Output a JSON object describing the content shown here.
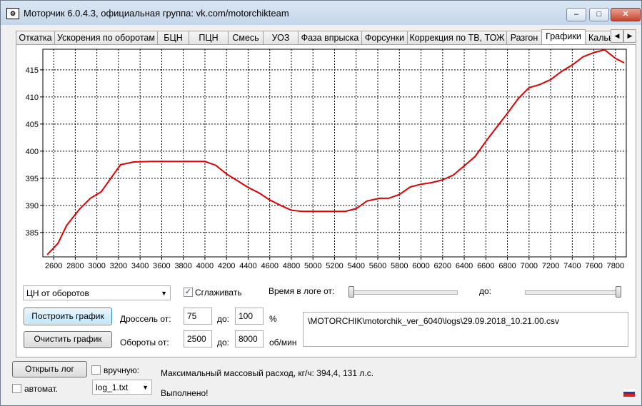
{
  "window": {
    "title": "Моторчик 6.0.4.3, официальная группа: vk.com/motorchikteam",
    "minimize": "–",
    "maximize": "□",
    "close": "✕"
  },
  "tabs": [
    {
      "label": "Откатка"
    },
    {
      "label": "Ускорения по оборотам"
    },
    {
      "label": "БЦН"
    },
    {
      "label": "ПЦН"
    },
    {
      "label": "Смесь"
    },
    {
      "label": "УОЗ"
    },
    {
      "label": "Фаза впрыска"
    },
    {
      "label": "Форсунки"
    },
    {
      "label": "Коррекция по ТВ, ТОЖ"
    },
    {
      "label": "Разгон"
    },
    {
      "label": "Графики"
    },
    {
      "label": "Кальь"
    }
  ],
  "active_tab": "Графики",
  "chart_data": {
    "type": "line",
    "xlim": [
      2500,
      7900
    ],
    "ylim": [
      380.5,
      418.8
    ],
    "xticks": [
      2600,
      2800,
      3000,
      3200,
      3400,
      3600,
      3800,
      4000,
      4200,
      4400,
      4600,
      4800,
      5000,
      5200,
      5400,
      5600,
      5800,
      6000,
      6200,
      6400,
      6600,
      6800,
      7000,
      7200,
      7400,
      7600,
      7800
    ],
    "yticks": [
      385,
      390,
      395,
      400,
      405,
      410,
      415
    ],
    "grid": true,
    "series": [
      {
        "color": "#e00000",
        "x": [
          2540,
          2640,
          2720,
          2840,
          2940,
          3040,
          3140,
          3220,
          3340,
          3500,
          3700,
          3900,
          4000,
          4100,
          4200,
          4320,
          4400,
          4500,
          4600,
          4700,
          4800,
          4900,
          5000,
          5100,
          5200,
          5300,
          5400,
          5500,
          5620,
          5700,
          5800,
          5900,
          6000,
          6100,
          6200,
          6300,
          6400,
          6500,
          6600,
          6700,
          6800,
          6900,
          7000,
          7100,
          7200,
          7300,
          7400,
          7500,
          7600,
          7700,
          7800,
          7880
        ],
        "y": [
          380.9,
          383.0,
          386.3,
          389.3,
          391.3,
          392.5,
          395.3,
          397.5,
          398.0,
          398.1,
          398.1,
          398.1,
          398.1,
          397.4,
          395.8,
          394.3,
          393.3,
          392.3,
          391.0,
          390.0,
          389.1,
          388.9,
          388.9,
          388.9,
          388.9,
          388.9,
          389.4,
          390.8,
          391.3,
          391.3,
          392.0,
          393.4,
          393.9,
          394.2,
          394.7,
          395.6,
          397.3,
          399.0,
          401.8,
          404.4,
          407.0,
          409.7,
          411.7,
          412.3,
          413.2,
          414.7,
          415.9,
          417.4,
          418.2,
          418.7,
          417.1,
          416.3
        ]
      }
    ]
  },
  "controls": {
    "graph_type": "ЦН от оборотов",
    "smooth_label": "Сглаживать",
    "smooth_checked": "✓",
    "log_time_label": "Время в логе от:",
    "to_label": "до:",
    "build_button": "Построить график",
    "clear_button": "Очистить график",
    "throttle_label": "Дроссель от:",
    "throttle_from": "75",
    "throttle_to_label": "до:",
    "throttle_to": "100",
    "throttle_unit": "%",
    "rpm_label": "Обороты от:",
    "rpm_from": "2500",
    "rpm_to_label": "до:",
    "rpm_to": "8000",
    "rpm_unit": "об/мин",
    "log_path": "\\MOTORCHIK\\motorchik_ver_6040\\logs\\29.09.2018_10.21.00.csv",
    "slider_from": 0,
    "slider_to": 1
  },
  "bottom": {
    "open_log_button": "Открыть лог",
    "manual_label": "вручную:",
    "auto_label": "автомат.",
    "log_file": "log_1.txt",
    "max_flow_text": "Максимальный массовый расход, кг/ч: 394,4, 131 л.с.",
    "status_text": "Выполнено!",
    "flag_colors": [
      "#ffffff",
      "#1c3fb5",
      "#e0201c"
    ]
  }
}
